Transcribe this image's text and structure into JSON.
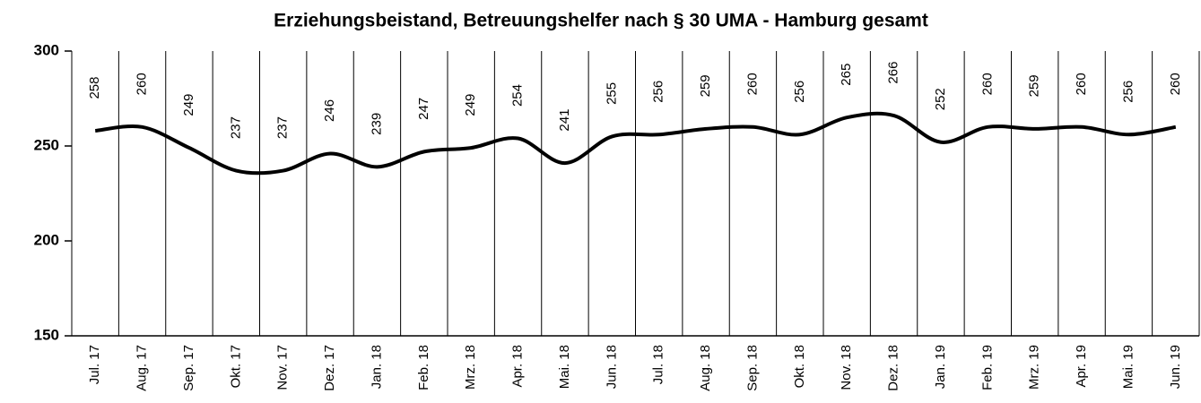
{
  "chart_data": {
    "type": "line",
    "title": "Erziehungsbeistand, Betreuungshelfer nach § 30  UMA  - Hamburg gesamt",
    "categories": [
      "Jul. 17",
      "Aug. 17",
      "Sep. 17",
      "Okt. 17",
      "Nov. 17",
      "Dez. 17",
      "Jan. 18",
      "Feb. 18",
      "Mrz. 18",
      "Apr. 18",
      "Mai. 18",
      "Jun. 18",
      "Jul. 18",
      "Aug. 18",
      "Sep. 18",
      "Okt. 18",
      "Nov. 18",
      "Dez. 18",
      "Jan. 19",
      "Feb. 19",
      "Mrz. 19",
      "Apr. 19",
      "Mai. 19",
      "Jun. 19"
    ],
    "series": [
      {
        "name": null,
        "color": "#000000",
        "values": [
          258,
          260,
          249,
          237,
          237,
          246,
          239,
          247,
          249,
          254,
          241,
          255,
          256,
          259,
          260,
          256,
          265,
          266,
          252,
          260,
          259,
          260,
          256,
          260
        ]
      }
    ],
    "ylim": [
      150,
      300
    ],
    "yticks": [
      150,
      200,
      250,
      300
    ],
    "grid": false
  }
}
